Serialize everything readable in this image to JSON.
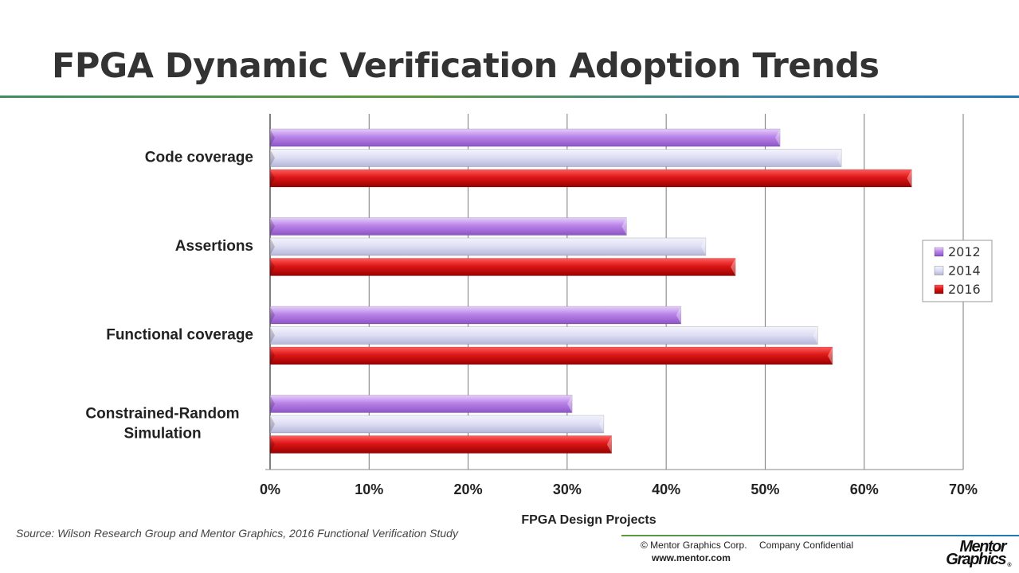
{
  "slide": {
    "title": "FPGA Dynamic Verification Adoption Trends",
    "source": "Source:  Wilson Research Group and Mentor Graphics, 2016 Functional Verification Study",
    "footer": {
      "copyright": "© Mentor Graphics Corp.",
      "confidential": "Company Confidential",
      "url": "www.mentor.com"
    },
    "logo": {
      "line1": "Mentor",
      "line2": "Graphics",
      "mark": "®"
    }
  },
  "chart_data": {
    "type": "bar",
    "orientation": "horizontal",
    "categories": [
      "Code coverage",
      "Assertions",
      "Functional coverage",
      "Constrained-Random Simulation"
    ],
    "series": [
      {
        "name": "2012",
        "color": "#b983e8",
        "values": [
          51.5,
          36,
          41.5,
          30.5
        ]
      },
      {
        "name": "2014",
        "color": "#d9d9f2",
        "values": [
          57.7,
          44,
          55.3,
          33.7
        ]
      },
      {
        "name": "2016",
        "color": "#cc1111",
        "values": [
          64.8,
          47,
          56.8,
          34.5
        ]
      }
    ],
    "xlabel": "FPGA Design Projects",
    "xlim": [
      0,
      70
    ],
    "xticks": [
      "0%",
      "10%",
      "20%",
      "30%",
      "40%",
      "50%",
      "60%",
      "70%"
    ],
    "grid": true,
    "legend": "right"
  }
}
